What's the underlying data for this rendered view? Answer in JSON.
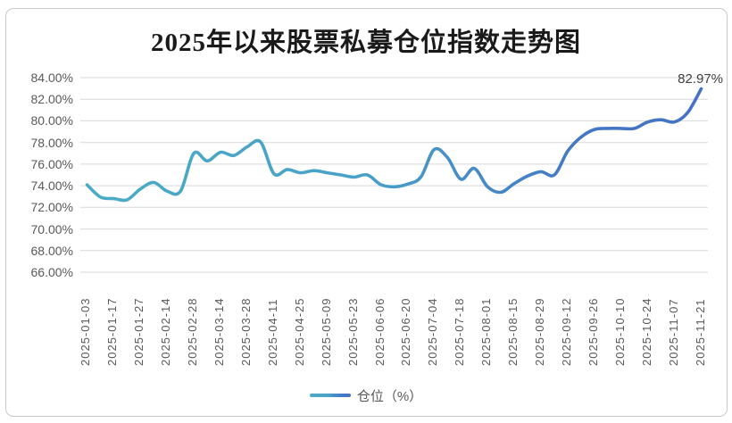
{
  "chart_data": {
    "type": "line",
    "title": "2025年以来股票私募仓位指数走势图",
    "series": [
      {
        "name": "仓位（%）",
        "values": [
          74.08,
          72.95,
          72.8,
          72.7,
          73.7,
          74.3,
          73.5,
          73.5,
          77.0,
          76.3,
          77.1,
          76.8,
          77.6,
          78.05,
          75.1,
          75.5,
          75.2,
          75.4,
          75.2,
          75.0,
          74.8,
          75.0,
          74.1,
          73.9,
          74.15,
          74.8,
          77.35,
          76.6,
          74.6,
          75.6,
          73.9,
          73.4,
          74.2,
          74.9,
          75.3,
          75.0,
          77.2,
          78.5,
          79.2,
          79.3,
          79.3,
          79.3,
          79.9,
          80.1,
          79.9,
          80.8,
          82.97
        ]
      }
    ],
    "x_labels": [
      "2025-01-03",
      "2025-01-17",
      "2025-01-27",
      "2025-02-14",
      "2025-02-28",
      "2025-03-14",
      "2025-03-28",
      "2025-04-11",
      "2025-04-25",
      "2025-05-09",
      "2025-05-23",
      "2025-06-06",
      "2025-06-20",
      "2025-07-04",
      "2025-07-18",
      "2025-08-01",
      "2025-08-15",
      "2025-08-29",
      "2025-09-12",
      "2025-09-26",
      "2025-10-10",
      "2025-10-24",
      "2025-11-07",
      "2025-11-21"
    ],
    "label_step": 2,
    "y_ticks": [
      "84.00%",
      "82.00%",
      "80.00%",
      "78.00%",
      "76.00%",
      "74.00%",
      "72.00%",
      "70.00%",
      "68.00%",
      "66.00%"
    ],
    "ylim": [
      66,
      84
    ],
    "y_tick_step": 2,
    "grid": true,
    "legend_position": "bottom",
    "last_point_label": "82.97%",
    "colors": {
      "line_gradient": [
        {
          "offset": 0,
          "color": "#4BACC6"
        },
        {
          "offset": 0.45,
          "color": "#49A0C8"
        },
        {
          "offset": 0.8,
          "color": "#4478C5"
        },
        {
          "offset": 1,
          "color": "#4472C4"
        }
      ],
      "gridline": "#D9D9D9",
      "axis_text": "#595959",
      "title_text": "#1A1A1A",
      "annotation_text": "#3F3F3F",
      "background": "#FFFFFF",
      "frame_border": "#C9C9C9"
    }
  }
}
